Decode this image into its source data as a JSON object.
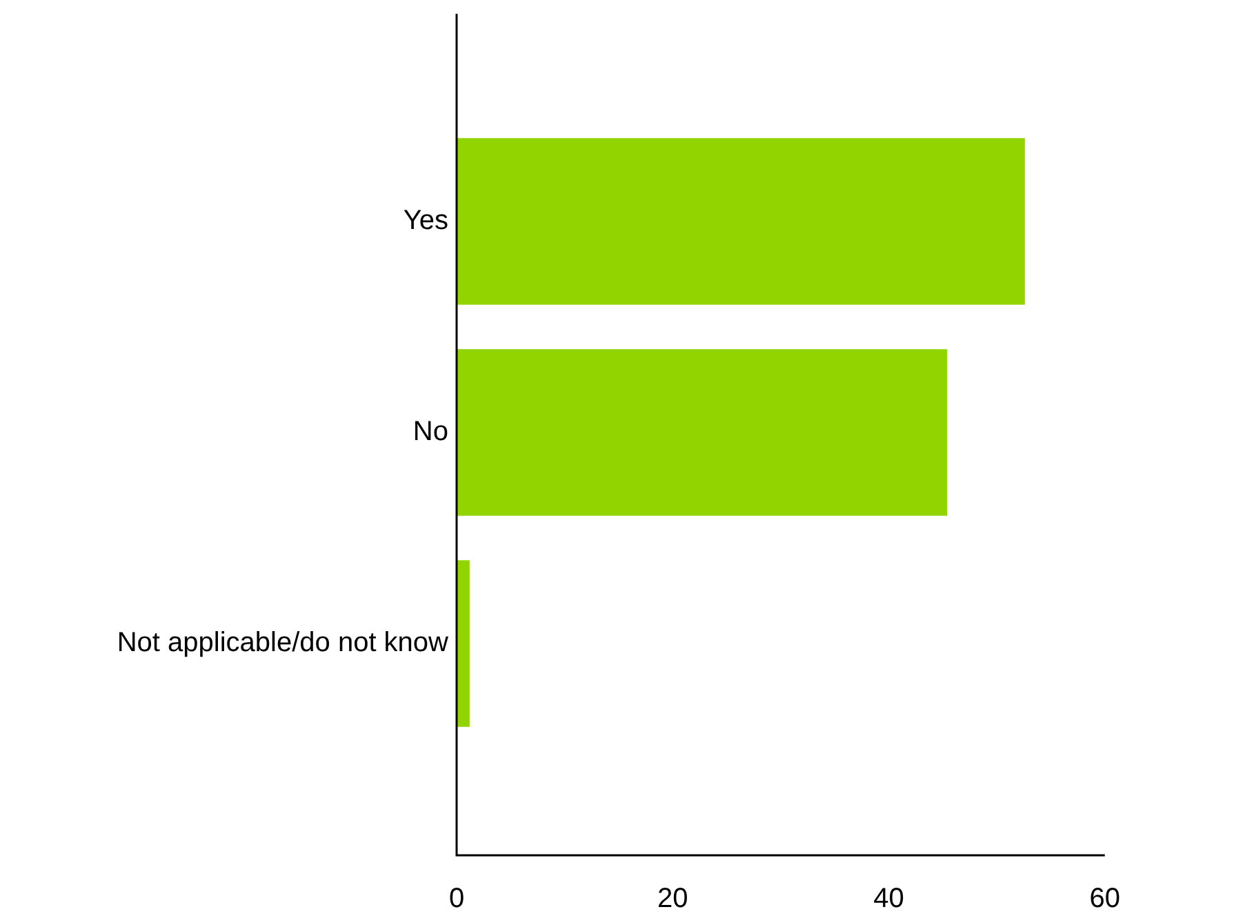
{
  "chart_data": {
    "type": "bar",
    "orientation": "horizontal",
    "categories": [
      "Yes",
      "No",
      "Not applicable/do not know"
    ],
    "values": [
      52.6,
      45.4,
      1.2
    ],
    "color": "#92d400",
    "xlim": [
      0,
      60
    ],
    "xticks": [
      0,
      20,
      40,
      60
    ],
    "grid": false,
    "legend": false
  }
}
